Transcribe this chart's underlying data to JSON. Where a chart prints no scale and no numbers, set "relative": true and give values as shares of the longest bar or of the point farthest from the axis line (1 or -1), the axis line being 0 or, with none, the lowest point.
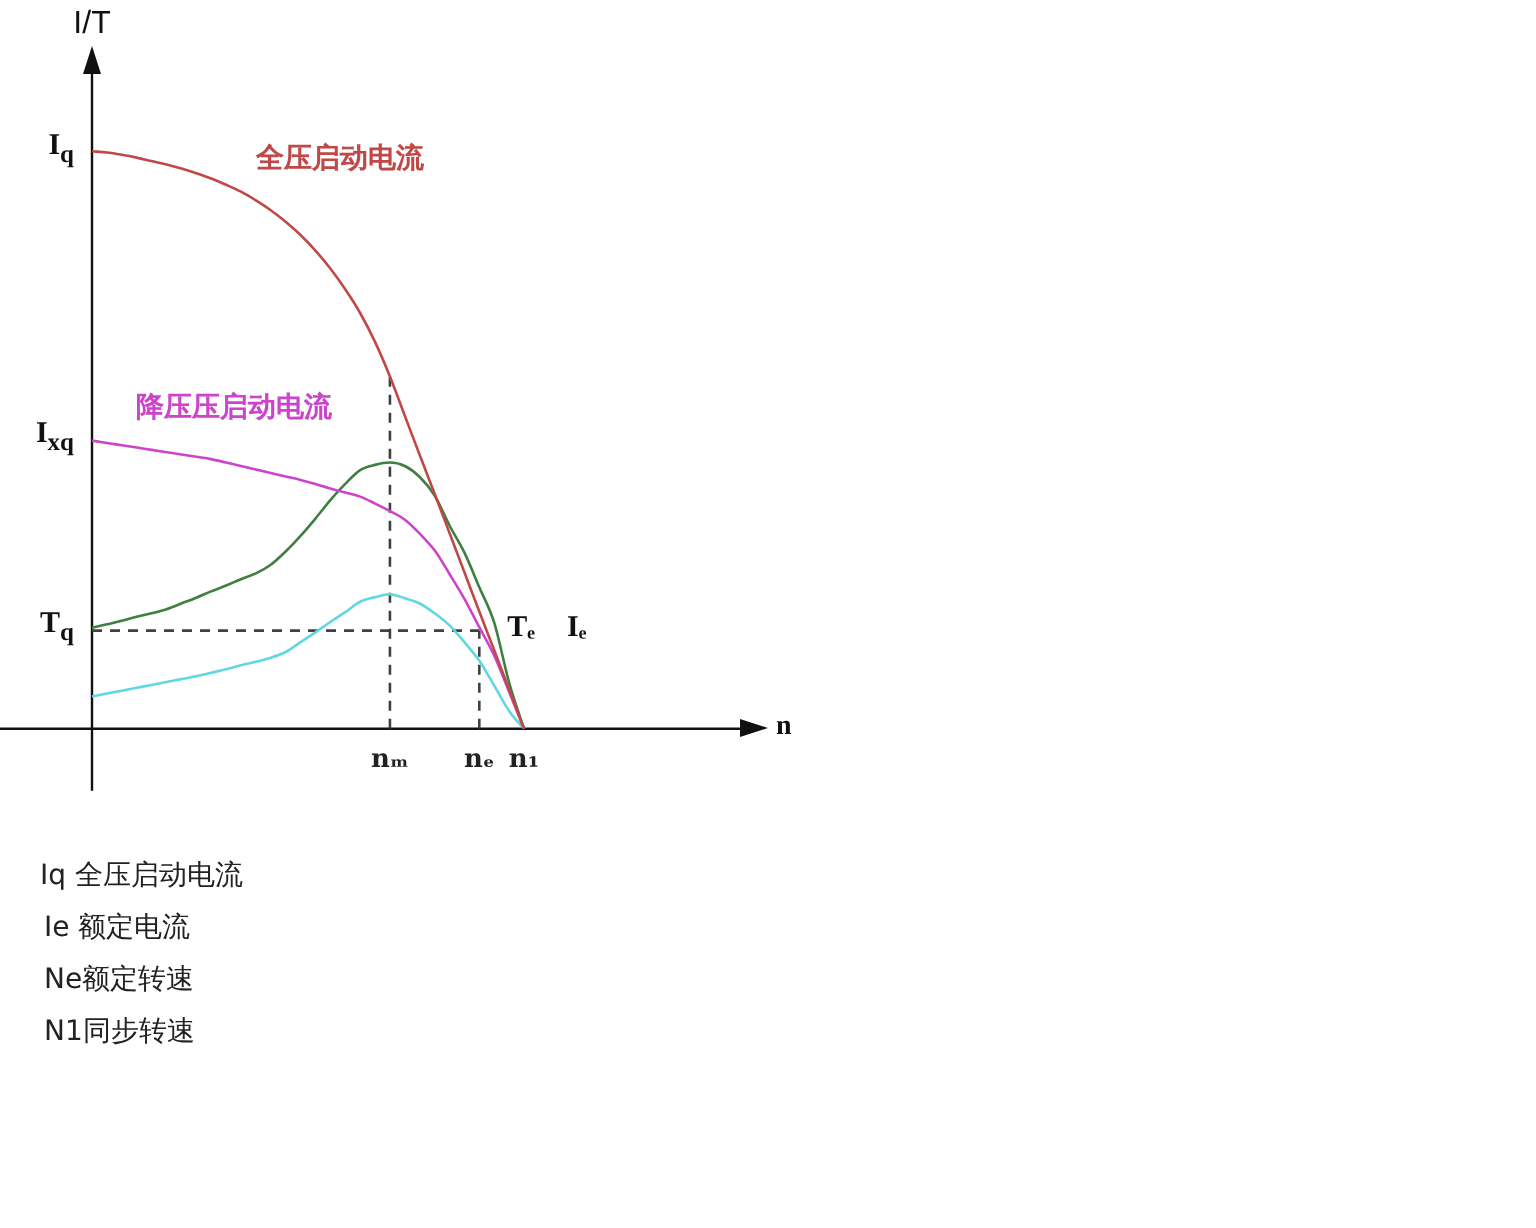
{
  "chart_data": {
    "type": "line",
    "relative": true,
    "ylabel": "I/T",
    "marker": "none",
    "legend": false,
    "categories": [
      null,
      null,
      null,
      null,
      null,
      null,
      null,
      null,
      null,
      null,
      null,
      null,
      null,
      null,
      null,
      null,
      null,
      null,
      null,
      null,
      "nₘ",
      null,
      null,
      null,
      null,
      null,
      "nₑ",
      null,
      null,
      "n₁"
    ],
    "series": [
      {
        "name": "全压启动电流",
        "color": "#c04848",
        "values": [
          1,
          0.998,
          0.994,
          0.989,
          0.983,
          0.977,
          0.97,
          0.962,
          0.953,
          0.942,
          0.93,
          0.915,
          0.898,
          0.878,
          0.855,
          0.828,
          0.797,
          0.761,
          0.72,
          0.67,
          0.61,
          0.542,
          0.474,
          0.407,
          0.339,
          0.271,
          0.203,
          0.136,
          0.068,
          0
        ]
      },
      {
        "name": "降压压启动电流",
        "color": "#cc44cc",
        "values": [
          0.499,
          0.495,
          0.491,
          0.487,
          0.483,
          0.479,
          0.475,
          0.471,
          0.467,
          0.461,
          0.455,
          0.449,
          0.443,
          0.437,
          0.431,
          0.424,
          0.416,
          0.409,
          0.402,
          0.39,
          0.377,
          0.362,
          0.338,
          0.309,
          0.268,
          0.225,
          0.176,
          0.127,
          0.064,
          0
        ]
      },
      {
        "color": "#3f7f3f",
        "values": [
          0.175,
          0.181,
          0.187,
          0.194,
          0.2,
          0.207,
          0.217,
          0.227,
          0.238,
          0.248,
          0.259,
          0.269,
          0.284,
          0.307,
          0.334,
          0.364,
          0.396,
          0.424,
          0.448,
          0.457,
          0.461,
          0.455,
          0.436,
          0.404,
          0.352,
          0.305,
          0.245,
          0.184,
          0.08,
          0
        ]
      },
      {
        "color": "#5fd8e2",
        "values": [
          0.056,
          0.061,
          0.066,
          0.071,
          0.076,
          0.081,
          0.086,
          0.091,
          0.097,
          0.103,
          0.11,
          0.116,
          0.123,
          0.133,
          0.15,
          0.167,
          0.185,
          0.202,
          0.22,
          0.228,
          0.233,
          0.226,
          0.217,
          0.2,
          0.179,
          0.15,
          0.118,
          0.075,
          0.031,
          0
        ]
      },
      {
        "color": "#404040",
        "line_style": "dashed",
        "values": [
          0.17,
          0.17,
          0.17,
          0.17,
          0.17,
          0.17,
          0.17,
          0.17,
          0.17,
          0.17,
          0.17,
          0.17,
          0.17,
          0.17,
          0.17,
          0.17,
          0.17,
          0.17,
          0.17,
          0.17,
          0.17,
          0.17,
          0.17,
          0.17,
          0.17,
          0.17,
          0.17,
          null,
          null,
          null
        ]
      },
      {
        "color": "#404040",
        "line_style": "dashed",
        "x": [
          "nₘ",
          "nₘ"
        ],
        "values": [
          0,
          0.61
        ]
      },
      {
        "color": "#404040",
        "line_style": "dashed",
        "x": [
          "nₑ",
          "nₑ"
        ],
        "values": [
          0,
          0.17
        ]
      }
    ],
    "annotations": [
      "I$_{q}$",
      "I$_{xq}$",
      "T$_{q}$",
      {
        "text": "Tₑ",
        "x": "nₑ",
        "y": 0.17
      },
      {
        "text": "Iₑ",
        "x": "nₑ",
        "y": 0.17
      },
      "n",
      "Iq 全压启动电流",
      "Ie 额定电流",
      "Ne额定转速",
      "N1同步转速"
    ]
  }
}
